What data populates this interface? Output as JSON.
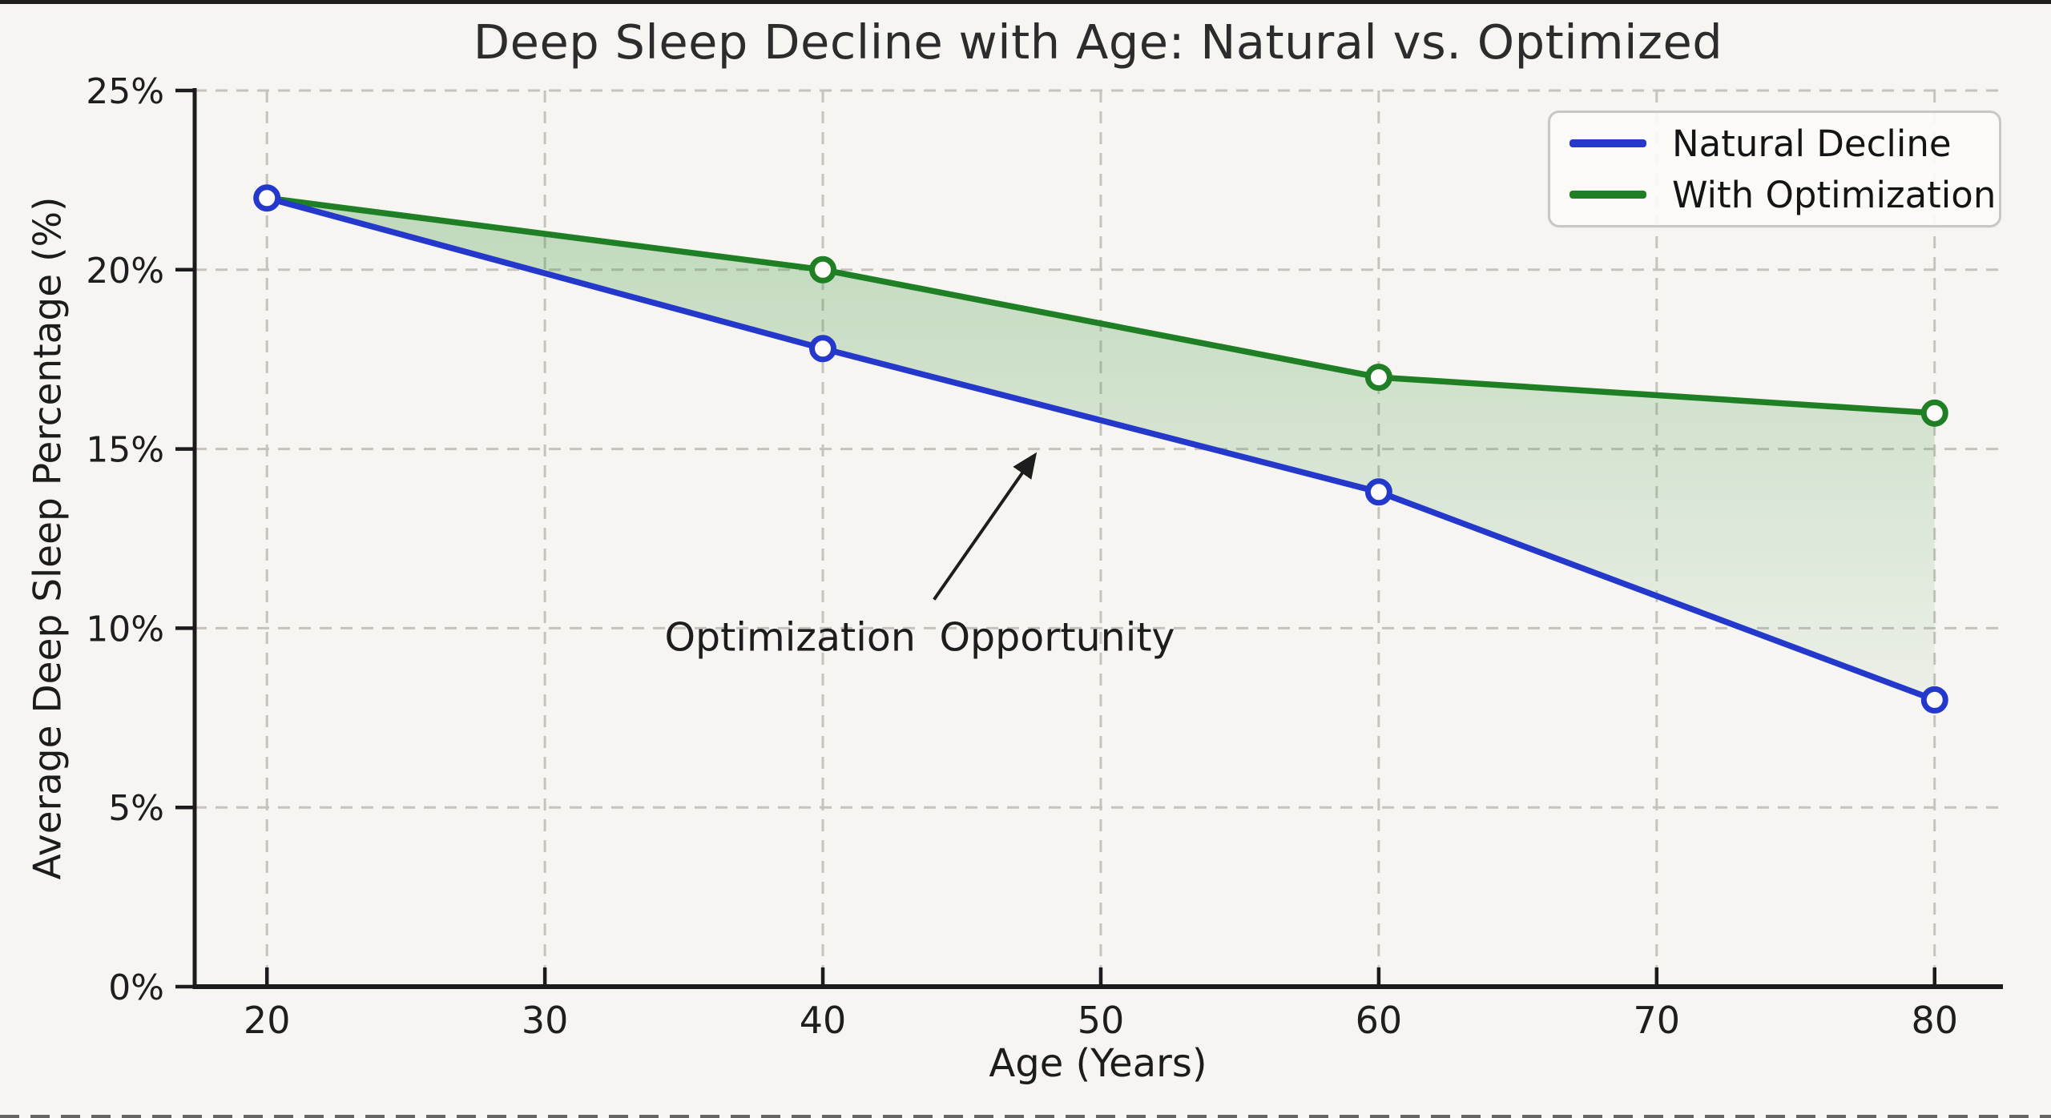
{
  "chart_data": {
    "type": "line",
    "title": "Deep Sleep Decline with Age: Natural vs. Optimized",
    "xlabel": "Age (Years)",
    "ylabel": "Average Deep Sleep Percentage (%)",
    "x": [
      20,
      40,
      60,
      80
    ],
    "series": [
      {
        "name": "Natural Decline",
        "color": "#2438cc",
        "values": [
          22,
          17.8,
          13.8,
          8
        ]
      },
      {
        "name": "With Optimization",
        "color": "#1f7f24",
        "values": [
          22,
          20,
          17,
          16
        ]
      }
    ],
    "fill_between": {
      "upper": "With Optimization",
      "lower": "Natural Decline",
      "color": "#3c963c",
      "opacity_top": 0.3,
      "opacity_bottom": 0.06
    },
    "annotation": {
      "text": "Optimization Opportunity",
      "arrow_from": [
        44.0,
        10.8
      ],
      "arrow_to": [
        47.6,
        14.8
      ]
    },
    "x_ticks": {
      "values": [
        20,
        30,
        40,
        50,
        60,
        70,
        80
      ],
      "labels": [
        "20",
        "30",
        "40",
        "50",
        "60",
        "70",
        "80"
      ]
    },
    "y_ticks": {
      "values": [
        0,
        5,
        10,
        15,
        20,
        25
      ],
      "labels": [
        "0%",
        "5%",
        "10%",
        "15%",
        "20%",
        "25%"
      ]
    },
    "xlim": [
      17.4,
      82.4
    ],
    "ylim": [
      0,
      25
    ],
    "grid": true,
    "legend": {
      "position": "upper right",
      "items": [
        "Natural Decline",
        "With Optimization"
      ]
    },
    "colors": {
      "background": "#f7f5f2",
      "gridline": "#c6c3bf",
      "spine": "#1b1b1b",
      "text": "#1e1e1e",
      "marker_face": "#fcfbf9",
      "annotation_arrow": "#1d1d1d"
    }
  }
}
